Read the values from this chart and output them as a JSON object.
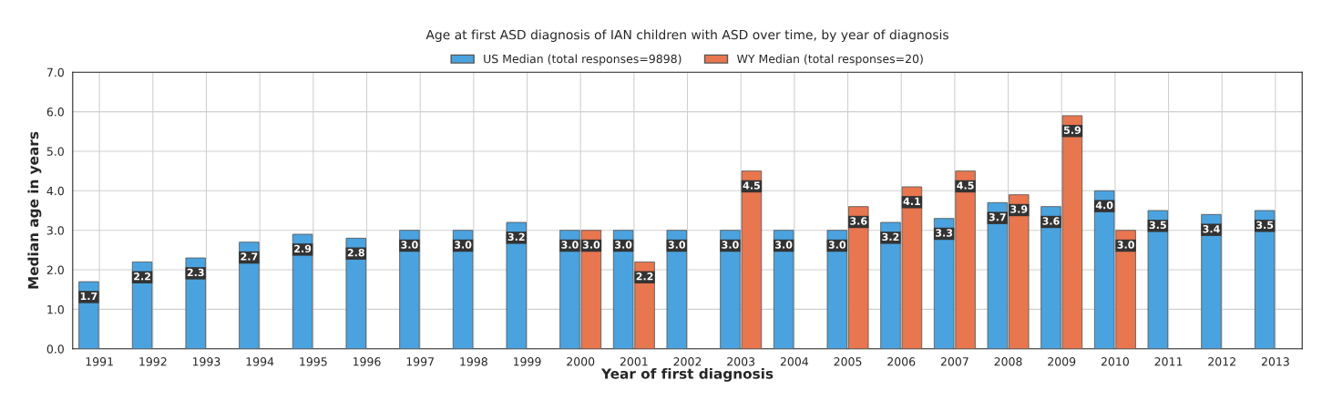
{
  "chart_data": {
    "type": "bar",
    "title": "Age at first ASD diagnosis of IAN children with ASD over time, by year of diagnosis",
    "xlabel": "Year of first diagnosis",
    "ylabel": "Median age in years",
    "categories": [
      "1991",
      "1992",
      "1993",
      "1994",
      "1995",
      "1996",
      "1997",
      "1998",
      "1999",
      "2000",
      "2001",
      "2002",
      "2003",
      "2004",
      "2005",
      "2006",
      "2007",
      "2008",
      "2009",
      "2010",
      "2011",
      "2012",
      "2013"
    ],
    "series": [
      {
        "name": "US Median (total responses=9898)",
        "color": "#4aa3df",
        "values": [
          1.7,
          2.2,
          2.3,
          2.7,
          2.9,
          2.8,
          3.0,
          3.0,
          3.2,
          3.0,
          3.0,
          3.0,
          3.0,
          3.0,
          3.0,
          3.2,
          3.3,
          3.7,
          3.6,
          4.0,
          3.5,
          3.4,
          3.5
        ],
        "value_labels": [
          "1.7",
          "2.2",
          "2.3",
          "2.7",
          "2.9",
          "2.8",
          "3.0",
          "3.0",
          "3.2",
          "3.0",
          "3.0",
          "3.0",
          "3.0",
          "3.0",
          "3.0",
          "3.2",
          "3.3",
          "3.7",
          "3.6",
          "4.0",
          "3.5",
          "3.4",
          "3.5"
        ]
      },
      {
        "name": "WY Median (total responses=20)",
        "color": "#e8764f",
        "values": [
          null,
          null,
          null,
          null,
          null,
          null,
          null,
          null,
          null,
          3.0,
          2.2,
          null,
          4.5,
          null,
          3.6,
          4.1,
          4.5,
          3.9,
          5.9,
          3.0,
          null,
          null,
          null
        ],
        "value_labels": [
          null,
          null,
          null,
          null,
          null,
          null,
          null,
          null,
          null,
          "3.0",
          "2.2",
          null,
          "4.5",
          null,
          "3.6",
          "4.1",
          "4.5",
          "3.9",
          "5.9",
          "3.0",
          null,
          null,
          null
        ]
      }
    ],
    "ylim": [
      0,
      7
    ],
    "yticks": [
      {
        "value": 0,
        "label": "0.0"
      },
      {
        "value": 1,
        "label": "1.0"
      },
      {
        "value": 2,
        "label": "2.0"
      },
      {
        "value": 3,
        "label": "3.0"
      },
      {
        "value": 4,
        "label": "4.0"
      },
      {
        "value": 5,
        "label": "5.0"
      },
      {
        "value": 6,
        "label": "6.0"
      },
      {
        "value": 7,
        "label": "7.0"
      }
    ],
    "grid": true,
    "legend": "top"
  }
}
